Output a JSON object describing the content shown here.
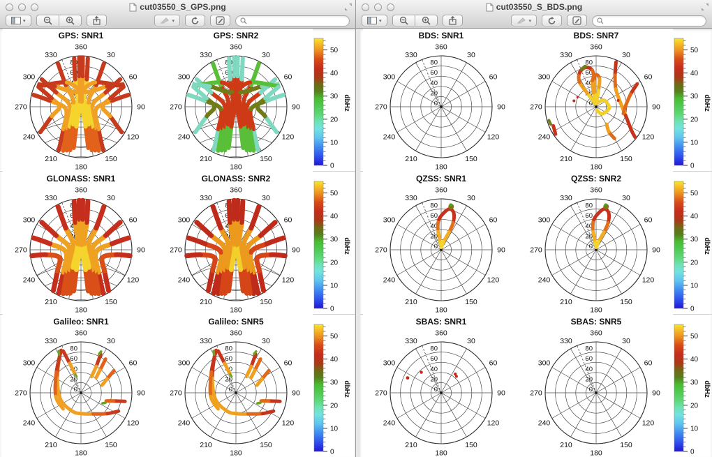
{
  "windows": [
    {
      "title": "cut03550_S_GPS.png",
      "controls": {
        "close": "close",
        "minimize": "minimize",
        "zoom": "zoom"
      },
      "toolbar": {
        "sidebar_label": "View sidebar",
        "zoom_out_label": "Zoom out",
        "zoom_in_label": "Zoom in",
        "share_label": "Share",
        "marker_label": "Marker",
        "rotate_label": "Rotate left",
        "markup_label": "Show markup toolbar",
        "search_placeholder": ""
      }
    },
    {
      "title": "cut03550_S_BDS.png",
      "controls": {
        "close": "close",
        "minimize": "minimize",
        "zoom": "zoom"
      },
      "toolbar": {
        "sidebar_label": "View sidebar",
        "zoom_out_label": "Zoom out",
        "zoom_in_label": "Zoom in",
        "share_label": "Share",
        "marker_label": "Marker",
        "rotate_label": "Rotate left",
        "markup_label": "Show markup toolbar",
        "search_placeholder": ""
      }
    }
  ],
  "skyplot_axes": {
    "az_labels": [
      "360",
      "30",
      "60",
      "90",
      "120",
      "150",
      "180",
      "210",
      "240",
      "270",
      "300",
      "330"
    ],
    "el_labels": [
      "0",
      "20",
      "40",
      "60",
      "80"
    ],
    "dashed_az": 338
  },
  "colorbar": {
    "label": "dbHz",
    "ticks": [
      0,
      10,
      20,
      30,
      40,
      50
    ],
    "minor_step": 2,
    "vmin": 0,
    "vmax": 55,
    "stops": [
      [
        55,
        "#f8e62e"
      ],
      [
        53,
        "#f6c328"
      ],
      [
        50,
        "#ef9420"
      ],
      [
        46,
        "#d84b18"
      ],
      [
        42,
        "#c52c1a"
      ],
      [
        38,
        "#a93a18"
      ],
      [
        35,
        "#6f6a15"
      ],
      [
        32,
        "#577f1b"
      ],
      [
        29,
        "#49bb31"
      ],
      [
        26,
        "#4ec84e"
      ],
      [
        22,
        "#5fd878"
      ],
      [
        19,
        "#6ee2b4"
      ],
      [
        16,
        "#74e2e0"
      ],
      [
        12,
        "#5fc4ee"
      ],
      [
        8,
        "#3f8bf2"
      ],
      [
        4,
        "#2f52ee"
      ],
      [
        0,
        "#2016d6"
      ]
    ]
  },
  "ramps": {
    "hot": [
      [
        0.34,
        "#f5d42d"
      ],
      [
        0.52,
        "#f0a125"
      ],
      [
        0.72,
        "#e2621c"
      ],
      [
        0.93,
        "#c63a1d"
      ],
      [
        2,
        "#7ba021"
      ]
    ],
    "cool": [
      [
        0.45,
        "#cf3a16"
      ],
      [
        0.56,
        "#6f7c17"
      ],
      [
        0.74,
        "#5abf38"
      ],
      [
        0.9,
        "#7fd9c0"
      ],
      [
        2,
        "#97e6e2"
      ]
    ],
    "glo": [
      [
        0.3,
        "#f5d42d"
      ],
      [
        0.5,
        "#efa122"
      ],
      [
        0.72,
        "#d94f18"
      ],
      [
        0.95,
        "#c52e1c"
      ],
      [
        2,
        "#7ba021"
      ]
    ],
    "glo2": [
      [
        0.25,
        "#f2cf2a"
      ],
      [
        0.45,
        "#ec9a1e"
      ],
      [
        0.7,
        "#d64517"
      ],
      [
        0.95,
        "#bf2b1a"
      ],
      [
        2,
        "#6f9a1c"
      ]
    ],
    "bds": [
      [
        0.3,
        "#f3cf2c"
      ],
      [
        0.55,
        "#efa01f"
      ],
      [
        0.7,
        "#e06a1a"
      ],
      [
        2,
        "#c7341c"
      ]
    ],
    "qzss": [
      [
        0.2,
        "#f5d42d"
      ],
      [
        0.45,
        "#f2ae24"
      ],
      [
        0.65,
        "#e4701c"
      ],
      [
        2,
        "#c8321c"
      ]
    ]
  },
  "track_sets": {
    "gps": [
      [
        [
          207,
          0.96
        ],
        [
          218,
          0.56
        ],
        [
          261,
          0.3
        ],
        [
          281,
          0.62
        ],
        [
          284,
          0.96
        ]
      ],
      [
        [
          202,
          0.93
        ],
        [
          213,
          0.5
        ],
        [
          275,
          0.22
        ],
        [
          300,
          0.56
        ],
        [
          305,
          0.94
        ]
      ],
      [
        [
          198,
          0.9
        ],
        [
          209,
          0.45
        ],
        [
          300,
          0.17
        ],
        [
          325,
          0.52
        ],
        [
          332,
          0.96
        ]
      ],
      [
        [
          194,
          0.88
        ],
        [
          204,
          0.38
        ],
        [
          332,
          0.13
        ],
        [
          348,
          0.55
        ],
        [
          352,
          0.96
        ]
      ],
      [
        [
          190,
          0.82
        ],
        [
          193,
          0.4
        ],
        [
          352,
          0.1
        ],
        [
          357,
          0.6
        ],
        [
          358,
          0.97
        ]
      ],
      [
        [
          153,
          0.96
        ],
        [
          142,
          0.56
        ],
        [
          99,
          0.3
        ],
        [
          79,
          0.62
        ],
        [
          76,
          0.96
        ]
      ],
      [
        [
          158,
          0.93
        ],
        [
          147,
          0.5
        ],
        [
          85,
          0.22
        ],
        [
          60,
          0.56
        ],
        [
          55,
          0.94
        ]
      ],
      [
        [
          162,
          0.9
        ],
        [
          151,
          0.45
        ],
        [
          60,
          0.17
        ],
        [
          35,
          0.52
        ],
        [
          28,
          0.96
        ]
      ],
      [
        [
          166,
          0.88
        ],
        [
          156,
          0.38
        ],
        [
          28,
          0.13
        ],
        [
          12,
          0.55
        ],
        [
          8,
          0.96
        ]
      ],
      [
        [
          170,
          0.82
        ],
        [
          167,
          0.4
        ],
        [
          8,
          0.1
        ],
        [
          3,
          0.6
        ],
        [
          2,
          0.97
        ]
      ],
      [
        [
          296,
          0.92
        ],
        [
          330,
          0.55
        ],
        [
          15,
          0.3
        ],
        [
          52,
          0.65
        ],
        [
          62,
          0.93
        ]
      ],
      [
        [
          64,
          0.92
        ],
        [
          30,
          0.55
        ],
        [
          345,
          0.3
        ],
        [
          308,
          0.65
        ],
        [
          298,
          0.93
        ]
      ],
      [
        [
          238,
          0.94
        ],
        [
          252,
          0.6
        ],
        [
          270,
          0.42
        ],
        [
          286,
          0.6
        ],
        [
          295,
          0.92
        ]
      ],
      [
        [
          122,
          0.94
        ],
        [
          108,
          0.6
        ],
        [
          90,
          0.42
        ],
        [
          74,
          0.6
        ],
        [
          65,
          0.92
        ]
      ]
    ],
    "glonass": [
      [
        [
          207,
          0.96
        ],
        [
          218,
          0.56
        ],
        [
          261,
          0.3
        ],
        [
          281,
          0.62
        ],
        [
          284,
          0.96
        ]
      ],
      [
        [
          202,
          0.93
        ],
        [
          213,
          0.5
        ],
        [
          275,
          0.22
        ],
        [
          300,
          0.56
        ],
        [
          305,
          0.94
        ]
      ],
      [
        [
          198,
          0.9
        ],
        [
          209,
          0.45
        ],
        [
          300,
          0.17
        ],
        [
          325,
          0.52
        ],
        [
          332,
          0.96
        ]
      ],
      [
        [
          194,
          0.88
        ],
        [
          204,
          0.38
        ],
        [
          332,
          0.13
        ],
        [
          348,
          0.55
        ],
        [
          352,
          0.96
        ]
      ],
      [
        [
          190,
          0.82
        ],
        [
          193,
          0.4
        ],
        [
          352,
          0.1
        ],
        [
          357,
          0.6
        ],
        [
          358,
          0.97
        ]
      ],
      [
        [
          153,
          0.96
        ],
        [
          142,
          0.56
        ],
        [
          99,
          0.3
        ],
        [
          79,
          0.62
        ],
        [
          76,
          0.96
        ]
      ],
      [
        [
          158,
          0.93
        ],
        [
          147,
          0.5
        ],
        [
          85,
          0.22
        ],
        [
          60,
          0.56
        ],
        [
          55,
          0.94
        ]
      ],
      [
        [
          162,
          0.9
        ],
        [
          151,
          0.45
        ],
        [
          60,
          0.17
        ],
        [
          35,
          0.52
        ],
        [
          28,
          0.96
        ]
      ],
      [
        [
          166,
          0.88
        ],
        [
          156,
          0.38
        ],
        [
          28,
          0.13
        ],
        [
          12,
          0.55
        ],
        [
          8,
          0.96
        ]
      ],
      [
        [
          170,
          0.82
        ],
        [
          167,
          0.4
        ],
        [
          8,
          0.1
        ],
        [
          3,
          0.6
        ],
        [
          2,
          0.97
        ]
      ],
      [
        [
          214,
          0.97
        ],
        [
          228,
          0.62
        ],
        [
          250,
          0.45
        ],
        [
          262,
          0.7
        ],
        [
          263,
          0.97
        ]
      ],
      [
        [
          146,
          0.97
        ],
        [
          132,
          0.62
        ],
        [
          110,
          0.45
        ],
        [
          98,
          0.7
        ],
        [
          97,
          0.97
        ]
      ]
    ],
    "galileo": [
      [
        [
          331,
          0.86
        ],
        [
          302,
          0.55
        ],
        [
          252,
          0.42
        ],
        [
          205,
          0.4
        ],
        [
          176,
          0.41
        ],
        [
          150,
          0.48
        ],
        [
          128,
          0.66
        ],
        [
          116,
          0.82
        ]
      ],
      [
        [
          335,
          0.92
        ],
        [
          310,
          0.63
        ],
        [
          262,
          0.5
        ],
        [
          228,
          0.47
        ]
      ],
      [
        [
          337,
          0.89
        ],
        [
          339,
          0.62
        ],
        [
          342,
          0.4
        ]
      ],
      [
        [
          27,
          0.85
        ],
        [
          30,
          0.6
        ],
        [
          33,
          0.38
        ]
      ],
      [
        [
          36,
          0.82
        ],
        [
          40,
          0.58
        ],
        [
          45,
          0.42
        ]
      ],
      [
        [
          56,
          0.78
        ],
        [
          62,
          0.58
        ],
        [
          70,
          0.44
        ]
      ],
      [
        [
          101,
          0.88
        ],
        [
          104,
          0.66
        ],
        [
          108,
          0.52
        ]
      ]
    ],
    "bds": [
      [
        [
          343,
          0.06
        ],
        [
          327,
          0.32
        ],
        [
          326,
          0.58
        ],
        [
          334,
          0.74
        ],
        [
          345,
          0.8
        ],
        [
          354,
          0.72
        ],
        [
          356,
          0.5
        ],
        [
          352,
          0.25
        ],
        [
          346,
          0.08
        ]
      ],
      [
        [
          357,
          0.06
        ],
        [
          350,
          0.28
        ],
        [
          352,
          0.52
        ],
        [
          0,
          0.63
        ],
        [
          7,
          0.55
        ],
        [
          8,
          0.32
        ],
        [
          3,
          0.08
        ]
      ],
      [
        [
          20,
          0.08
        ],
        [
          50,
          0.2
        ],
        [
          95,
          0.26
        ],
        [
          140,
          0.18
        ],
        [
          168,
          0.07
        ]
      ],
      [
        [
          24,
          0.96
        ],
        [
          31,
          0.72
        ],
        [
          48,
          0.52
        ],
        [
          78,
          0.48
        ],
        [
          106,
          0.6
        ],
        [
          124,
          0.84
        ],
        [
          128,
          0.97
        ]
      ],
      [
        [
          61,
          0.92
        ],
        [
          70,
          0.72
        ],
        [
          88,
          0.58
        ],
        [
          104,
          0.55
        ]
      ],
      [
        [
          150,
          0.72
        ],
        [
          153,
          0.55
        ],
        [
          149,
          0.4
        ]
      ],
      [
        [
          236,
          0.96
        ],
        [
          246,
          0.92
        ]
      ]
    ],
    "qzss": [
      [
        [
          2,
          0.05
        ],
        [
          352,
          0.2
        ],
        [
          351,
          0.42
        ],
        [
          356,
          0.6
        ],
        [
          5,
          0.74
        ],
        [
          12,
          0.82
        ],
        [
          19,
          0.76
        ],
        [
          24,
          0.58
        ],
        [
          24,
          0.38
        ],
        [
          16,
          0.16
        ],
        [
          5,
          0.05
        ]
      ]
    ]
  },
  "extra_sets": {
    "galileo_tips": [
      {
        "c": "#6fa01e",
        "w": 3.5,
        "pts": [
          [
            332,
            0.93
          ],
          [
            330,
            0.86
          ]
        ]
      },
      {
        "c": "#6fa01e",
        "w": 3.5,
        "pts": [
          [
            26,
            0.9
          ],
          [
            25,
            0.84
          ]
        ]
      },
      {
        "c": "#6fa01e",
        "w": 3.5,
        "pts": [
          [
            112,
            0.52
          ],
          [
            116,
            0.47
          ]
        ]
      },
      {
        "c": "#6fa01e",
        "w": 3.0,
        "pts": [
          [
            343,
            0.38
          ],
          [
            345,
            0.33
          ]
        ]
      }
    ],
    "bds_tips": [
      {
        "c": "#6f7e18",
        "w": 5,
        "pts": [
          [
            339,
            0.79
          ],
          [
            345,
            0.82
          ]
        ]
      },
      {
        "c": "#6f7e18",
        "w": 4,
        "pts": [
          [
            249,
            0.955
          ],
          [
            254,
            0.965
          ]
        ]
      }
    ]
  },
  "dot_sets": {
    "bds": [
      [
        285,
        0.45,
        2,
        "#c22b1b"
      ],
      [
        297,
        0.41,
        1.6,
        "#c22b1b"
      ],
      [
        74,
        0.45,
        2,
        "#c22b1b"
      ]
    ],
    "qzss_blob": [
      [
        13,
        0.87,
        4,
        "#7b7c16"
      ],
      [
        12,
        0.905,
        2,
        "#5a9c20"
      ]
    ],
    "sbas": [
      [
        37,
        0.46,
        2.2,
        "#c22b1b"
      ],
      [
        43,
        0.44,
        2,
        "#c22b1b"
      ],
      [
        316,
        0.56,
        2.2,
        "#c22b1b"
      ],
      [
        294,
        0.72,
        2.4,
        "#c22b1b"
      ]
    ]
  },
  "chart_data": [
    {
      "window": 0,
      "row": 0,
      "col": 0,
      "type": "skyplot",
      "title": "GPS: SNR1",
      "grid": "globe",
      "tracks": "gps",
      "ramp": "hot",
      "w": 6
    },
    {
      "window": 0,
      "row": 0,
      "col": 1,
      "type": "skyplot",
      "title": "GPS: SNR2",
      "grid": "globe",
      "tracks": "gps",
      "ramp": "cool",
      "w": 6
    },
    {
      "window": 0,
      "row": 1,
      "col": 0,
      "type": "skyplot",
      "title": "GLONASS: SNR1",
      "grid": "globe",
      "tracks": "glonass",
      "ramp": "glo",
      "w": 7
    },
    {
      "window": 0,
      "row": 1,
      "col": 1,
      "type": "skyplot",
      "title": "GLONASS: SNR2",
      "grid": "globe",
      "tracks": "glonass",
      "ramp": "glo2",
      "w": 7
    },
    {
      "window": 0,
      "row": 2,
      "col": 0,
      "type": "skyplot",
      "title": "Galileo: SNR1",
      "grid": "polar",
      "tracks": "galileo",
      "ramp": "hot",
      "w": 5,
      "extra": "galileo_tips"
    },
    {
      "window": 0,
      "row": 2,
      "col": 1,
      "type": "skyplot",
      "title": "Galileo: SNR5",
      "grid": "polar",
      "tracks": "galileo",
      "ramp": "bds",
      "w": 5,
      "extra": "galileo_tips"
    },
    {
      "window": 1,
      "row": 0,
      "col": 0,
      "type": "skyplot",
      "title": "BDS: SNR1",
      "grid": "polar"
    },
    {
      "window": 1,
      "row": 0,
      "col": 1,
      "type": "skyplot",
      "title": "BDS: SNR7",
      "grid": "polar",
      "tracks": "bds",
      "ramp": "bds",
      "w": 5,
      "extra": "bds_tips",
      "dots": "bds"
    },
    {
      "window": 1,
      "row": 1,
      "col": 0,
      "type": "skyplot",
      "title": "QZSS: SNR1",
      "grid": "polar",
      "tracks": "qzss",
      "ramp": "qzss",
      "w": 5,
      "dots": "qzss_blob"
    },
    {
      "window": 1,
      "row": 1,
      "col": 1,
      "type": "skyplot",
      "title": "QZSS: SNR2",
      "grid": "polar",
      "tracks": "qzss",
      "ramp": "qzss",
      "w": 5,
      "dots": "qzss_blob"
    },
    {
      "window": 1,
      "row": 2,
      "col": 0,
      "type": "skyplot",
      "title": "SBAS: SNR1",
      "grid": "polar",
      "dots": "sbas"
    },
    {
      "window": 1,
      "row": 2,
      "col": 1,
      "type": "skyplot",
      "title": "SBAS: SNR5",
      "grid": "polar"
    }
  ]
}
